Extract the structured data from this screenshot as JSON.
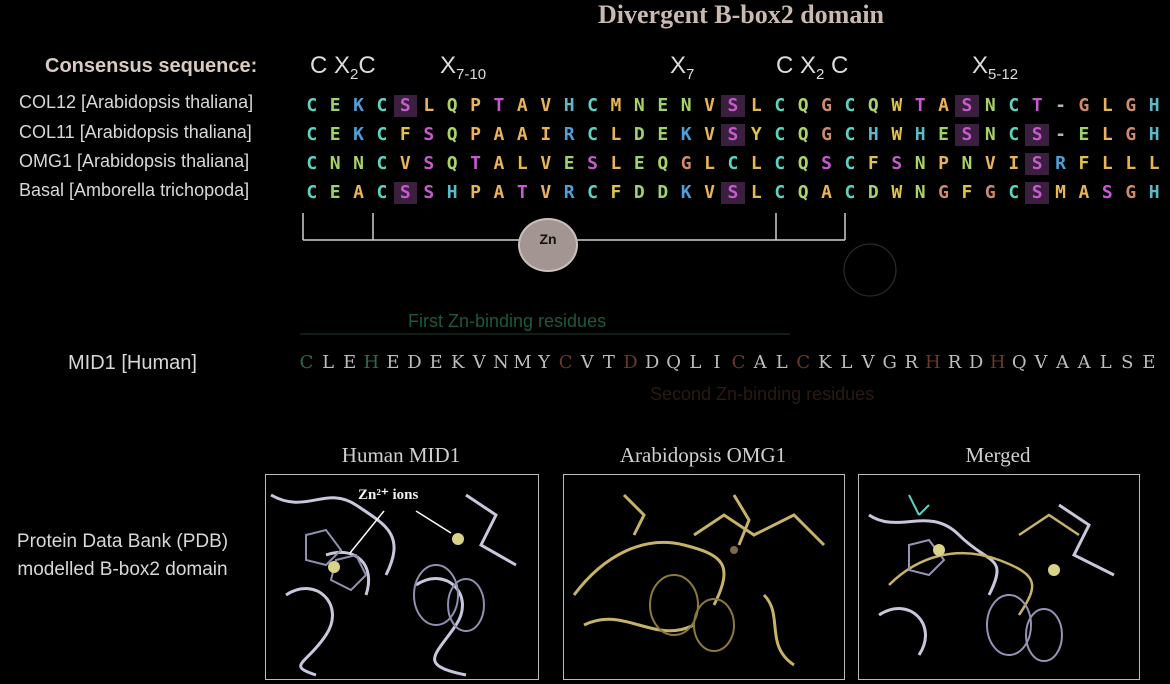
{
  "title": "Divergent B-box2 domain",
  "consensus_label": "Consensus sequence:",
  "motifs": [
    {
      "base": "C X",
      "sub": "2",
      "tail": "C"
    },
    {
      "base": "X",
      "sub": "7-10",
      "tail": ""
    },
    {
      "base": "X",
      "sub": "7",
      "tail": ""
    },
    {
      "base": "C X",
      "sub": "2",
      "tail": " C"
    },
    {
      "base": "X",
      "sub": "5-12",
      "tail": ""
    }
  ],
  "sequences": [
    {
      "label": "COL12 [Arabidopsis thaliana]",
      "residues": [
        "C",
        "E",
        "K",
        "C",
        "S",
        "L",
        "Q",
        "P",
        "T",
        "A",
        "V",
        "H",
        "C",
        "M",
        "N",
        "E",
        "N",
        "V",
        "S",
        "L",
        "C",
        "Q",
        "G",
        "C",
        "Q",
        "W",
        "T",
        "A",
        "S",
        "N",
        "C",
        "T",
        "-",
        "G",
        "L",
        "G",
        "H"
      ]
    },
    {
      "label": "COL11 [Arabidopsis thaliana]",
      "residues": [
        "C",
        "E",
        "K",
        "C",
        "F",
        "S",
        "Q",
        "P",
        "A",
        "A",
        "I",
        "R",
        "C",
        "L",
        "D",
        "E",
        "K",
        "V",
        "S",
        "Y",
        "C",
        "Q",
        "G",
        "C",
        "H",
        "W",
        "H",
        "E",
        "S",
        "N",
        "C",
        "S",
        "-",
        "E",
        "L",
        "G",
        "H"
      ]
    },
    {
      "label": "OMG1 [Arabidopsis thaliana]",
      "residues": [
        "C",
        "N",
        "N",
        "C",
        "V",
        "S",
        "Q",
        "T",
        "A",
        "L",
        "V",
        "E",
        "S",
        "L",
        "E",
        "Q",
        "G",
        "L",
        "C",
        "L",
        "C",
        "Q",
        "S",
        "C",
        "F",
        "S",
        "N",
        "P",
        "N",
        "V",
        "I",
        "S",
        "R",
        "F",
        "L",
        "L",
        "L"
      ]
    },
    {
      "label": "Basal [Amborella trichopoda]",
      "residues": [
        "C",
        "E",
        "A",
        "C",
        "S",
        "S",
        "H",
        "P",
        "A",
        "T",
        "V",
        "R",
        "C",
        "F",
        "D",
        "D",
        "K",
        "V",
        "S",
        "L",
        "C",
        "Q",
        "A",
        "C",
        "D",
        "W",
        "N",
        "G",
        "F",
        "G",
        "C",
        "S",
        "M",
        "A",
        "S",
        "G",
        "H"
      ]
    }
  ],
  "zn_label": "Zn",
  "first_zn_label": "First Zn-binding residues",
  "second_zn_label": "Second Zn-binding residues",
  "mid1": {
    "label": "MID1 [Human]",
    "residues": [
      "C",
      "L",
      "E",
      "H",
      "E",
      "D",
      "E",
      "K",
      "V",
      "N",
      "M",
      "Y",
      "C",
      "V",
      "T",
      "D",
      "D",
      "Q",
      "L",
      "I",
      "C",
      "A",
      "L",
      "C",
      "K",
      "L",
      "V",
      "G",
      "R",
      "H",
      "R",
      "D",
      "H",
      "Q",
      "V",
      "A",
      "A",
      "L",
      "S",
      "E"
    ]
  },
  "pdb_label_line1": "Protein Data Bank (PDB)",
  "pdb_label_line2": "modelled B-box2 domain",
  "panels": [
    {
      "title": "Human  MID1"
    },
    {
      "title": "Arabidopsis OMG1"
    },
    {
      "title": "Merged"
    }
  ],
  "zn_ions_label": "Zn²⁺ ions",
  "colors": {
    "C": "#5bd3c0",
    "E": "#9cd36b",
    "K": "#4fa0d9",
    "S": "#c85ad0",
    "hydrophobic": "#e8b35a",
    "polar": "#d7a14f",
    "gly": "#d08a6c",
    "N": "#a8d36b",
    "H": "#5bb9c9",
    "W": "#e0c24a",
    "other": "#c0b0a8",
    "highlight_bg": "#3b1f3f"
  }
}
